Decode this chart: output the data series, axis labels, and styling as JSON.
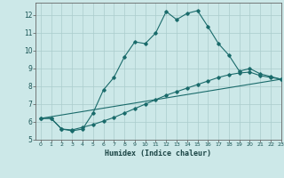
{
  "xlabel": "Humidex (Indice chaleur)",
  "bg_color": "#cce8e8",
  "grid_color": "#aacccc",
  "line_color": "#1a6b6b",
  "xlim": [
    -0.5,
    23
  ],
  "ylim": [
    5,
    12.7
  ],
  "xticks": [
    0,
    1,
    2,
    3,
    4,
    5,
    6,
    7,
    8,
    9,
    10,
    11,
    12,
    13,
    14,
    15,
    16,
    17,
    18,
    19,
    20,
    21,
    22,
    23
  ],
  "yticks": [
    5,
    6,
    7,
    8,
    9,
    10,
    11,
    12
  ],
  "line1_x": [
    0,
    1,
    2,
    3,
    4,
    5,
    6,
    7,
    8,
    9,
    10,
    11,
    12,
    13,
    14,
    15,
    16,
    17,
    18,
    19,
    20,
    21,
    22,
    23
  ],
  "line1_y": [
    6.2,
    6.2,
    5.6,
    5.5,
    5.6,
    6.5,
    7.8,
    8.5,
    9.65,
    10.5,
    10.4,
    11.0,
    12.2,
    11.75,
    12.1,
    12.25,
    11.35,
    10.4,
    9.75,
    8.85,
    9.0,
    8.7,
    8.55,
    8.4
  ],
  "line2_x": [
    0,
    1,
    2,
    3,
    4,
    5,
    6,
    7,
    8,
    9,
    10,
    11,
    12,
    13,
    14,
    15,
    16,
    17,
    18,
    19,
    20,
    21,
    22,
    23
  ],
  "line2_y": [
    6.2,
    6.2,
    5.6,
    5.55,
    5.7,
    5.85,
    6.05,
    6.25,
    6.5,
    6.75,
    7.0,
    7.25,
    7.5,
    7.7,
    7.9,
    8.1,
    8.3,
    8.5,
    8.65,
    8.75,
    8.8,
    8.6,
    8.5,
    8.4
  ],
  "line3_x": [
    0,
    23
  ],
  "line3_y": [
    6.2,
    8.4
  ]
}
